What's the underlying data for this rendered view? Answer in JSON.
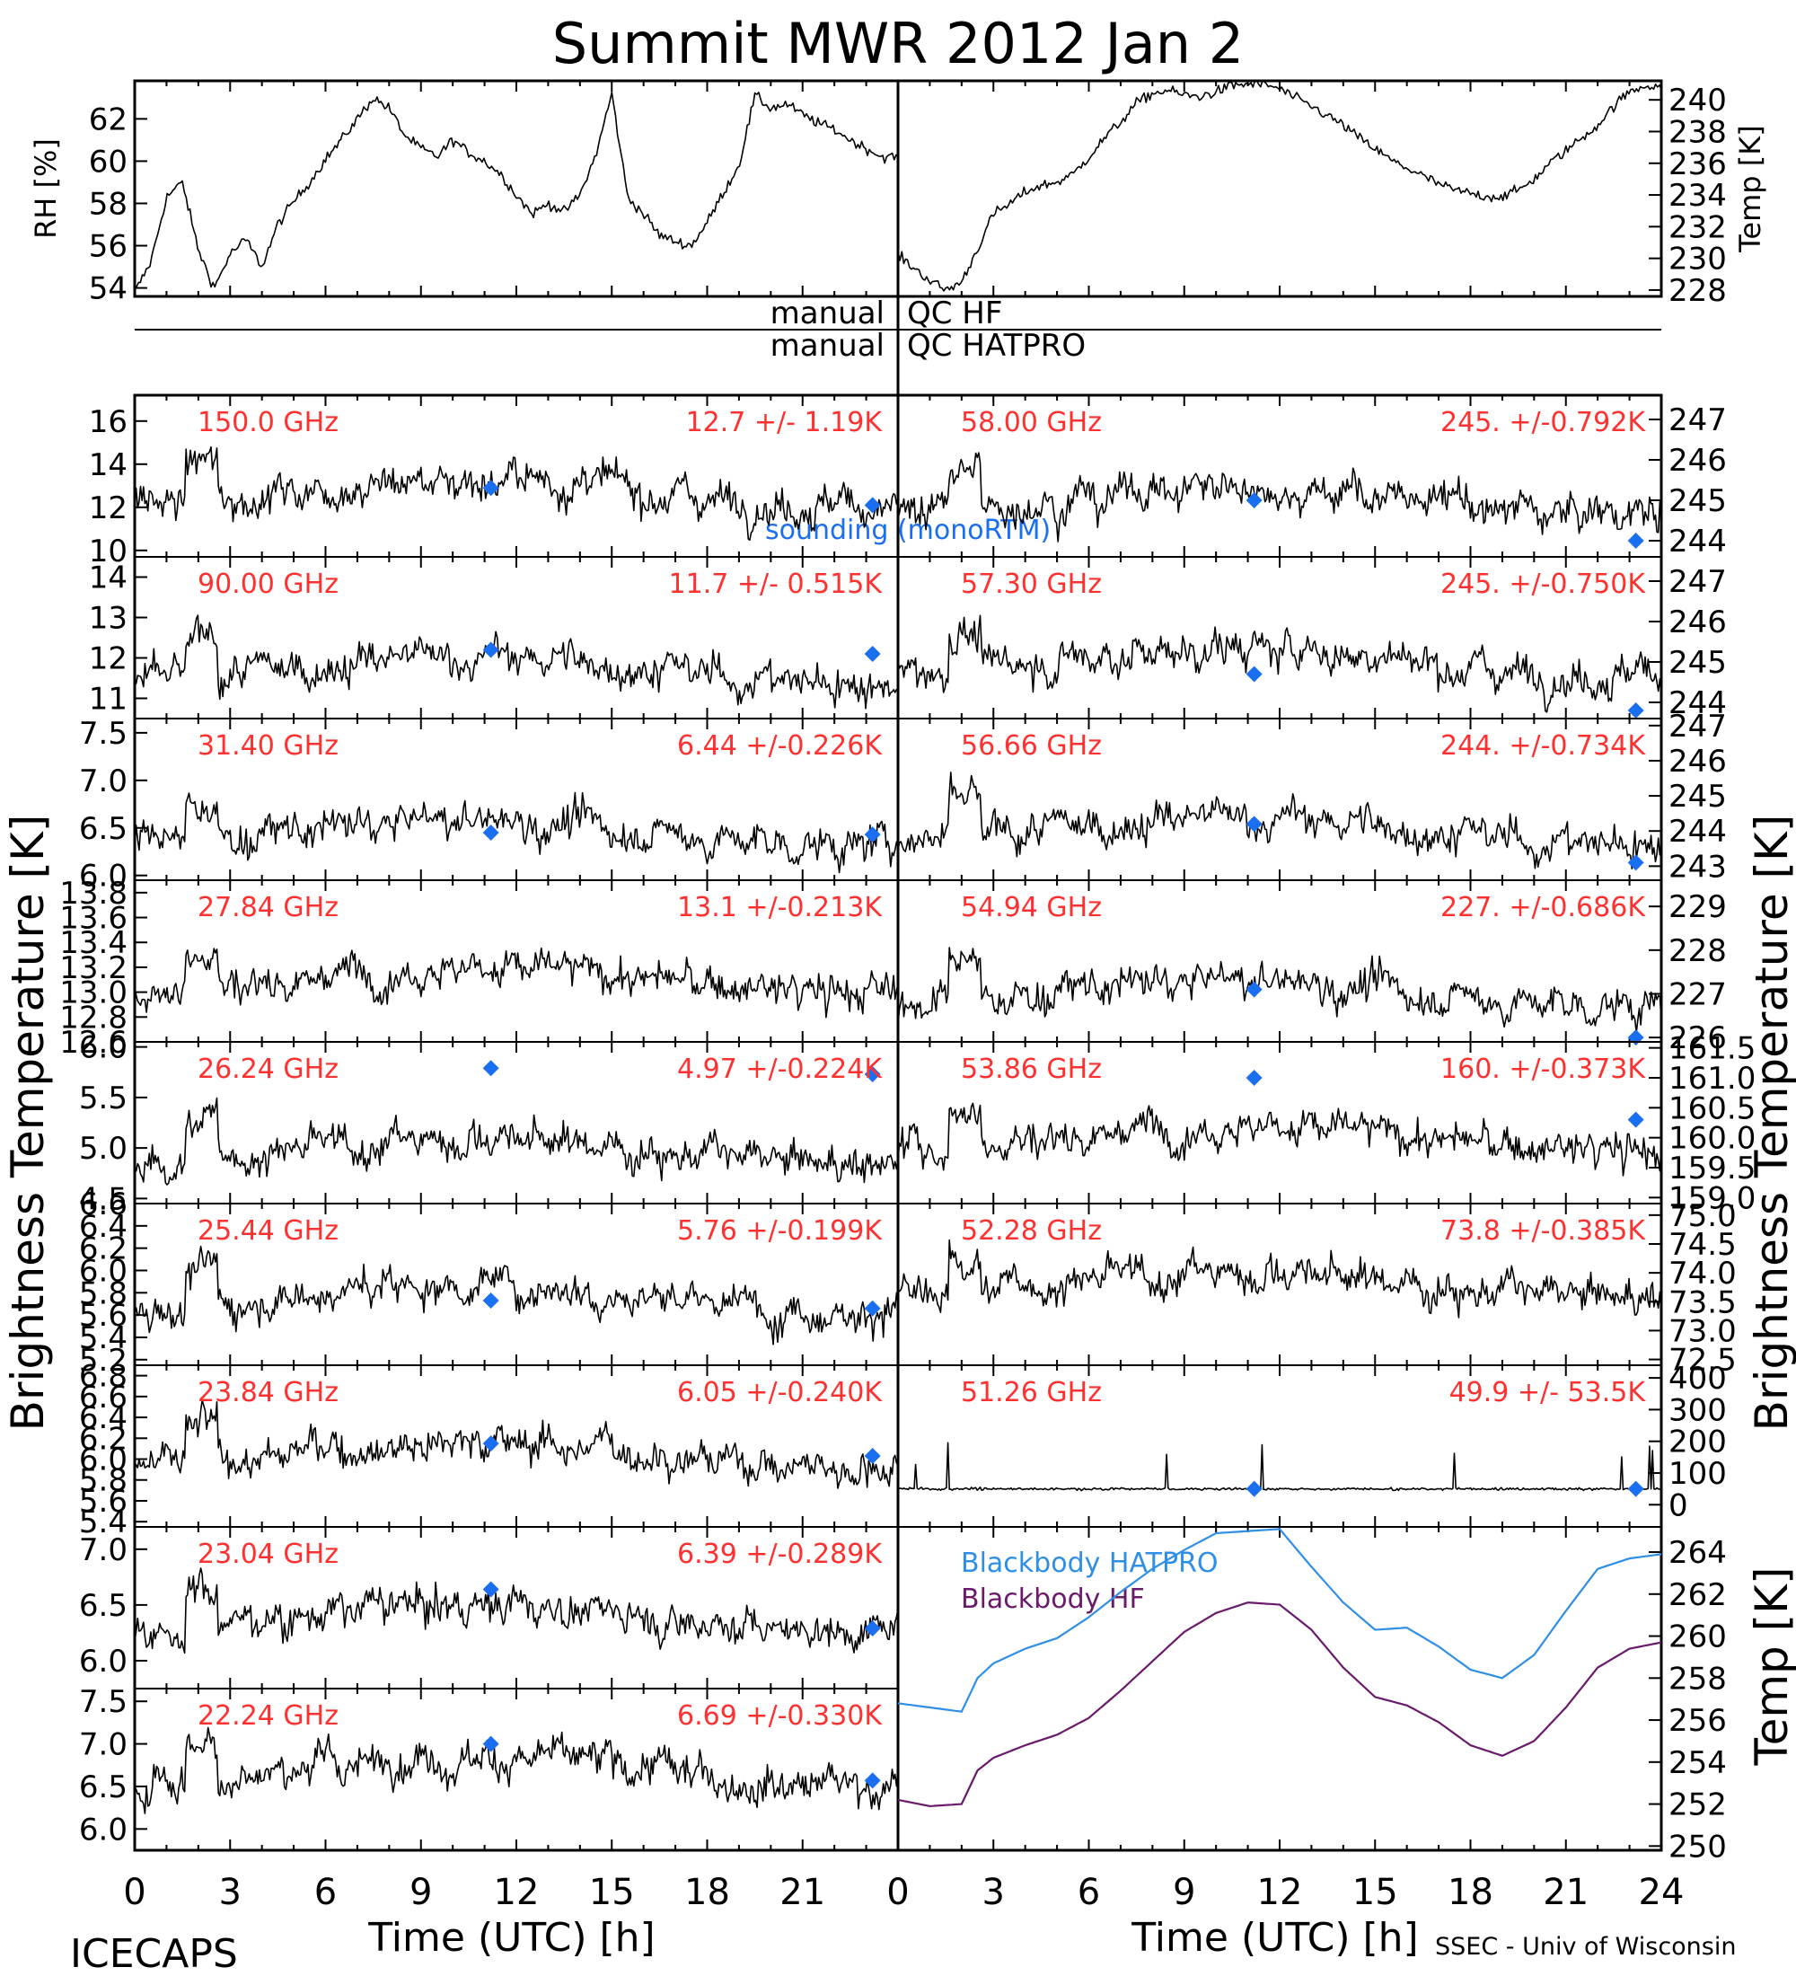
{
  "title": "Summit MWR 2012 Jan  2",
  "footer_left": "ICECAPS",
  "footer_right": "SSEC - Univ of Wisconsin",
  "axes_text": {
    "left_ylabel": "Brightness Temperature [K]",
    "right_ylabel": "Brightness Temperature [K]",
    "xlabel": "Time (UTC) [h]",
    "rh_label": "RH [%]",
    "temp_label": "Temp [K]",
    "bb_temp_label": "Temp [K]",
    "qc1_left": "manual",
    "qc1_right": "QC HF",
    "qc2_left": "manual",
    "qc2_right": "QC HATPRO",
    "sounding_legend": "sounding (monoRTM)",
    "bb_hatpro_legend": "Blackbody HATPRO",
    "bb_hf_legend": "Blackbody HF"
  },
  "colors": {
    "trace": "#000000",
    "channel_label": "#ff3030",
    "sounding_marker": "#1a6ff0",
    "bb_hatpro": "#2f8fe6",
    "bb_hf": "#6a1a6a"
  },
  "chart_data": [
    {
      "type": "line",
      "panel": "rh",
      "ylabel": "RH [%]",
      "xlim": [
        0,
        24
      ],
      "ylim": [
        53.6,
        63.8
      ],
      "yticks": [
        "54",
        "56",
        "58",
        "60",
        "62"
      ],
      "x": [
        0,
        0.5,
        1,
        1.5,
        2,
        2.5,
        3,
        3.5,
        4,
        4.5,
        5,
        5.5,
        6,
        6.5,
        7,
        7.5,
        8,
        8.5,
        9,
        9.5,
        10,
        10.5,
        11,
        11.5,
        12,
        12.5,
        13,
        13.5,
        14,
        14.5,
        15,
        15.5,
        16,
        16.5,
        17,
        17.5,
        18,
        18.5,
        19,
        19.5,
        20,
        20.5,
        21,
        21.5,
        22,
        22.5,
        23,
        23.5
      ],
      "y": [
        53.8,
        55.2,
        58.3,
        59.0,
        55.8,
        54.0,
        55.6,
        56.3,
        55.0,
        57.0,
        58.1,
        59.0,
        60.1,
        61.0,
        62.0,
        63.0,
        62.5,
        61.2,
        60.6,
        60.2,
        61.0,
        60.4,
        60.0,
        59.4,
        58.4,
        57.5,
        58.0,
        57.6,
        58.4,
        60.3,
        63.2,
        58.3,
        57.5,
        56.5,
        56.2,
        56.0,
        57.1,
        58.5,
        59.8,
        63.1,
        62.5,
        62.7,
        62.2,
        61.8,
        61.5,
        61.0,
        60.6,
        60.2
      ]
    },
    {
      "type": "line",
      "panel": "temp",
      "ylabel": "Temp [K]",
      "xlim": [
        0,
        24
      ],
      "ylim": [
        227.6,
        241.2
      ],
      "yticks": [
        "228",
        "230",
        "232",
        "234",
        "236",
        "238",
        "240"
      ],
      "x": [
        0,
        0.5,
        1,
        1.5,
        2,
        2.5,
        3,
        3.5,
        4,
        4.5,
        5,
        5.5,
        6,
        6.5,
        7,
        7.5,
        8,
        8.5,
        9,
        9.5,
        10,
        10.5,
        11,
        11.5,
        12,
        12.5,
        13,
        13.5,
        14,
        14.5,
        15,
        15.5,
        16,
        16.5,
        17,
        17.5,
        18,
        18.5,
        19,
        19.5,
        20,
        20.5,
        21,
        21.5,
        22,
        22.5,
        23,
        23.5
      ],
      "y": [
        230.2,
        229.4,
        228.6,
        228.0,
        228.5,
        230.6,
        232.8,
        233.4,
        234.2,
        234.6,
        234.8,
        235.3,
        236.4,
        237.6,
        238.6,
        239.8,
        240.4,
        240.6,
        240.3,
        240.2,
        240.5,
        240.9,
        241.0,
        241.0,
        240.7,
        240.1,
        239.6,
        239.0,
        238.4,
        237.6,
        236.9,
        236.2,
        235.7,
        235.2,
        234.7,
        234.3,
        234.1,
        233.9,
        233.9,
        234.3,
        235.0,
        236.0,
        236.8,
        237.6,
        238.4,
        239.6,
        240.5,
        240.9
      ]
    },
    {
      "type": "scatter",
      "panel": "hf_150",
      "channel": "150.0 GHz",
      "stats": "12.7 +/-  1.19K",
      "xlim": [
        0,
        24
      ],
      "ylim": [
        9.7,
        17.2
      ],
      "yticks": [
        "10",
        "12",
        "14",
        "16"
      ],
      "mean": 12.7,
      "noise": 1.19,
      "sounding": [
        [
          11.2,
          12.9
        ],
        [
          23.2,
          12.1
        ]
      ]
    },
    {
      "type": "scatter",
      "panel": "hf_90",
      "channel": "90.00 GHz",
      "stats": "11.7 +/- 0.515K",
      "xlim": [
        0,
        24
      ],
      "ylim": [
        10.5,
        14.5
      ],
      "yticks": [
        "11",
        "12",
        "13",
        "14"
      ],
      "mean": 11.7,
      "noise": 0.515,
      "sounding": [
        [
          11.2,
          12.2
        ],
        [
          23.2,
          12.1
        ]
      ]
    },
    {
      "type": "scatter",
      "panel": "hat_31.40",
      "channel": "31.40 GHz",
      "stats": "6.44 +/-0.226K",
      "xlim": [
        0,
        24
      ],
      "ylim": [
        5.95,
        7.65
      ],
      "yticks": [
        "6.0",
        "6.5",
        "7.0",
        "7.5"
      ],
      "mean": 6.44,
      "noise": 0.226,
      "sounding": [
        [
          11.2,
          6.45
        ],
        [
          23.2,
          6.43
        ]
      ]
    },
    {
      "type": "scatter",
      "panel": "hat_27.84",
      "channel": "27.84 GHz",
      "stats": "13.1 +/-0.213K",
      "xlim": [
        0,
        24
      ],
      "ylim": [
        12.6,
        13.9
      ],
      "yticks": [
        "12.6",
        "12.8",
        "13.0",
        "13.2",
        "13.4",
        "13.6",
        "13.8"
      ],
      "mean": 13.1,
      "noise": 0.213,
      "sounding": []
    },
    {
      "type": "scatter",
      "panel": "hat_26.24",
      "channel": "26.24 GHz",
      "stats": "4.97 +/-0.224K",
      "xlim": [
        0,
        24
      ],
      "ylim": [
        4.45,
        6.05
      ],
      "yticks": [
        "4.5",
        "5.0",
        "5.5",
        "6.0"
      ],
      "mean": 4.97,
      "noise": 0.224,
      "sounding": [
        [
          11.2,
          5.79
        ],
        [
          23.2,
          5.73
        ]
      ]
    },
    {
      "type": "scatter",
      "panel": "hat_25.44",
      "channel": "25.44 GHz",
      "stats": "5.76 +/-0.199K",
      "xlim": [
        0,
        24
      ],
      "ylim": [
        5.15,
        6.6
      ],
      "yticks": [
        "5.2",
        "5.4",
        "5.6",
        "5.8",
        "6.0",
        "6.2",
        "6.4",
        "6.6"
      ],
      "mean": 5.76,
      "noise": 0.199,
      "sounding": [
        [
          11.2,
          5.73
        ],
        [
          23.2,
          5.66
        ]
      ]
    },
    {
      "type": "scatter",
      "panel": "hat_23.84",
      "channel": "23.84 GHz",
      "stats": "6.05 +/-0.240K",
      "xlim": [
        0,
        24
      ],
      "ylim": [
        5.35,
        6.9
      ],
      "yticks": [
        "5.4",
        "5.6",
        "5.8",
        "6.0",
        "6.2",
        "6.4",
        "6.6",
        "6.8"
      ],
      "mean": 6.05,
      "noise": 0.24,
      "sounding": [
        [
          11.2,
          6.15
        ],
        [
          23.2,
          6.03
        ]
      ]
    },
    {
      "type": "scatter",
      "panel": "hat_23.04",
      "channel": "23.04 GHz",
      "stats": "6.39 +/-0.289K",
      "xlim": [
        0,
        24
      ],
      "ylim": [
        5.75,
        7.2
      ],
      "yticks": [
        "6.0",
        "6.5",
        "7.0"
      ],
      "mean": 6.39,
      "noise": 0.289,
      "sounding": [
        [
          11.2,
          6.64
        ],
        [
          23.2,
          6.29
        ]
      ]
    },
    {
      "type": "scatter",
      "panel": "hat_22.24",
      "channel": "22.24 GHz",
      "stats": "6.69 +/-0.330K",
      "xlim": [
        0,
        24
      ],
      "ylim": [
        5.75,
        7.65
      ],
      "yticks": [
        "6.0",
        "6.5",
        "7.0",
        "7.5"
      ],
      "mean": 6.69,
      "noise": 0.33,
      "sounding": [
        [
          11.2,
          7.0
        ],
        [
          23.2,
          6.57
        ]
      ]
    },
    {
      "type": "scatter",
      "panel": "hat_58.00",
      "channel": "58.00 GHz",
      "stats": "245. +/-0.792K",
      "xlim": [
        0,
        24
      ],
      "ylim": [
        243.6,
        247.6
      ],
      "yticks": [
        "244",
        "245",
        "246",
        "247"
      ],
      "mean": 245,
      "noise": 0.792,
      "sounding": [
        [
          11.2,
          245.0
        ],
        [
          23.2,
          244.0
        ]
      ]
    },
    {
      "type": "scatter",
      "panel": "hat_57.30",
      "channel": "57.30 GHz",
      "stats": "245. +/-0.750K",
      "xlim": [
        0,
        24
      ],
      "ylim": [
        243.6,
        247.6
      ],
      "yticks": [
        "244",
        "245",
        "246",
        "247"
      ],
      "mean": 245,
      "noise": 0.75,
      "sounding": [
        [
          11.2,
          244.7
        ],
        [
          23.2,
          243.8
        ]
      ]
    },
    {
      "type": "scatter",
      "panel": "hat_56.66",
      "channel": "56.66 GHz",
      "stats": "244. +/-0.734K",
      "xlim": [
        0,
        24
      ],
      "ylim": [
        242.6,
        247.2
      ],
      "yticks": [
        "243",
        "244",
        "245",
        "246",
        "247"
      ],
      "mean": 244,
      "noise": 0.734,
      "sounding": [
        [
          11.2,
          244.2
        ],
        [
          23.2,
          243.1
        ]
      ]
    },
    {
      "type": "scatter",
      "panel": "hat_54.94",
      "channel": "54.94 GHz",
      "stats": "227. +/-0.686K",
      "xlim": [
        0,
        24
      ],
      "ylim": [
        225.9,
        229.6
      ],
      "yticks": [
        "226",
        "227",
        "228",
        "229"
      ],
      "mean": 227,
      "noise": 0.686,
      "sounding": [
        [
          11.2,
          227.1
        ],
        [
          23.2,
          226.0
        ]
      ]
    },
    {
      "type": "scatter",
      "panel": "hat_53.86",
      "channel": "53.86 GHz",
      "stats": "160. +/-0.373K",
      "xlim": [
        0,
        24
      ],
      "ylim": [
        158.9,
        161.6
      ],
      "yticks": [
        "159.0",
        "159.5",
        "160.0",
        "160.5",
        "161.0",
        "161.5"
      ],
      "mean": 160,
      "noise": 0.373,
      "sounding": [
        [
          11.2,
          161.0
        ],
        [
          23.2,
          160.3
        ]
      ]
    },
    {
      "type": "scatter",
      "panel": "hat_52.28",
      "channel": "52.28 GHz",
      "stats": "73.8 +/-0.385K",
      "xlim": [
        0,
        24
      ],
      "ylim": [
        72.4,
        75.2
      ],
      "yticks": [
        "72.5",
        "73.0",
        "73.5",
        "74.0",
        "74.5",
        "75.0"
      ],
      "mean": 73.8,
      "noise": 0.385,
      "sounding": []
    },
    {
      "type": "scatter",
      "panel": "hat_51.26",
      "channel": "51.26 GHz",
      "stats": "49.9 +/- 53.5K",
      "xlim": [
        0,
        24
      ],
      "ylim": [
        -70,
        440
      ],
      "yticks": [
        "0",
        "100",
        "200",
        "300",
        "400"
      ],
      "mean": 49.9,
      "noise": 53.5,
      "sounding": [
        [
          11.2,
          50
        ],
        [
          23.2,
          50
        ]
      ]
    },
    {
      "type": "line",
      "panel": "blackbody",
      "ylabel": "Temp [K]",
      "xlim": [
        0,
        24
      ],
      "ylim": [
        249.8,
        265.2
      ],
      "yticks": [
        "250",
        "252",
        "254",
        "256",
        "258",
        "260",
        "262",
        "264"
      ],
      "series": [
        {
          "name": "Blackbody HATPRO",
          "x": [
            0,
            1,
            2,
            2.5,
            3,
            4,
            5,
            6,
            7,
            8,
            9,
            10,
            11,
            12,
            13,
            14,
            15,
            16,
            17,
            18,
            19,
            20,
            21,
            22,
            23,
            24
          ],
          "y": [
            256.8,
            256.6,
            256.4,
            258.0,
            258.7,
            259.4,
            259.9,
            260.9,
            262.1,
            263.2,
            264.1,
            264.9,
            265.0,
            265.1,
            263.3,
            261.6,
            260.3,
            260.4,
            259.5,
            258.4,
            258.0,
            259.1,
            261.2,
            263.2,
            263.7,
            263.9
          ]
        },
        {
          "name": "Blackbody HF",
          "x": [
            0,
            1,
            2,
            2.5,
            3,
            4,
            5,
            6,
            7,
            8,
            9,
            10,
            11,
            12,
            13,
            14,
            15,
            16,
            17,
            18,
            19,
            20,
            21,
            22,
            23,
            24
          ],
          "y": [
            252.2,
            251.9,
            252.0,
            253.6,
            254.2,
            254.8,
            255.3,
            256.1,
            257.4,
            258.8,
            260.2,
            261.1,
            261.6,
            261.5,
            260.3,
            258.5,
            257.1,
            256.7,
            255.9,
            254.8,
            254.3,
            255.0,
            256.6,
            258.5,
            259.4,
            259.7
          ]
        }
      ]
    }
  ]
}
